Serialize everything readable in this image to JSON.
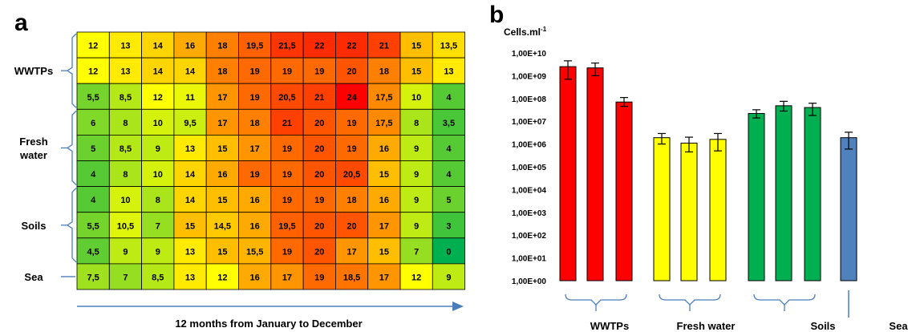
{
  "panel_a": {
    "label": "a",
    "xlabel": "12 months from January to December",
    "groups": [
      {
        "name": "WWTPs",
        "rows": 3
      },
      {
        "name": "Fresh\nwater",
        "rows": 3
      },
      {
        "name": "Soils",
        "rows": 3
      },
      {
        "name": "Sea",
        "rows": 1
      }
    ],
    "colors": {
      "low": "#00b050",
      "mid": "#ffff00",
      "high": "#ff0000",
      "gridline": "#000000",
      "bracket": "#4a7ebb",
      "arrow": "#4a7ebb"
    }
  },
  "panel_b": {
    "label": "b",
    "ylabel": "Cells.ml",
    "ylabel_sup": "-1",
    "yticks": [
      "1,00E+00",
      "1,00E+01",
      "1,00E+02",
      "1,00E+03",
      "1,00E+04",
      "1,00E+05",
      "1,00E+06",
      "1,00E+07",
      "1,00E+08",
      "1,00E+09",
      "1,00E+10"
    ],
    "groups": [
      "WWTPs",
      "Fresh water",
      "Soils",
      "Sea"
    ],
    "colors": {
      "WWTPs": "#ff0000",
      "Fresh water": "#ffff00",
      "Soils": "#00b050",
      "Sea": "#4f81bd",
      "bracket": "#4a7ebb"
    }
  },
  "chart_data": [
    {
      "type": "heatmap",
      "title": "",
      "xlabel": "12 months from January to December",
      "ylabel": "",
      "row_groups": [
        "WWTPs",
        "Fresh water",
        "Soils",
        "Sea"
      ],
      "rows": [
        [
          "12",
          "13",
          "14",
          "16",
          "18",
          "19,5",
          "21,5",
          "22",
          "22",
          "21",
          "15",
          "13,5"
        ],
        [
          "12",
          "13",
          "14",
          "14",
          "18",
          "19",
          "19",
          "19",
          "20",
          "18",
          "15",
          "13"
        ],
        [
          "5,5",
          "8,5",
          "12",
          "11",
          "17",
          "19",
          "20,5",
          "21",
          "24",
          "17,5",
          "10",
          "4"
        ],
        [
          "6",
          "8",
          "10",
          "9,5",
          "17",
          "18",
          "21",
          "20",
          "19",
          "17,5",
          "8",
          "3,5"
        ],
        [
          "5",
          "8,5",
          "9",
          "13",
          "15",
          "17",
          "19",
          "20",
          "19",
          "16",
          "9",
          "4"
        ],
        [
          "4",
          "8",
          "10",
          "14",
          "16",
          "19",
          "19",
          "20",
          "20,5",
          "15",
          "9",
          "4"
        ],
        [
          "4",
          "10",
          "8",
          "14",
          "15",
          "16",
          "19",
          "19",
          "18",
          "16",
          "9",
          "5"
        ],
        [
          "5,5",
          "10,5",
          "7",
          "15",
          "14,5",
          "16",
          "19,5",
          "20",
          "20",
          "17",
          "9",
          "3"
        ],
        [
          "4,5",
          "9",
          "9",
          "13",
          "15",
          "15,5",
          "19",
          "20",
          "17",
          "15",
          "7",
          "0"
        ],
        [
          "7,5",
          "7",
          "8,5",
          "13",
          "12",
          "16",
          "17",
          "19",
          "18,5",
          "17",
          "12",
          "9"
        ]
      ]
    },
    {
      "type": "bar",
      "title": "",
      "ylabel": "Cells.ml-1",
      "yscale": "log",
      "ylim": [
        1,
        10000000000
      ],
      "categories": [
        "WWTPs",
        "Fresh water",
        "Soils",
        "Sea"
      ],
      "bars": [
        {
          "group": "WWTPs",
          "value": 2500000000,
          "err_low": 700000000,
          "err_high": 4500000000
        },
        {
          "group": "WWTPs",
          "value": 2200000000,
          "err_low": 1000000000,
          "err_high": 3600000000
        },
        {
          "group": "WWTPs",
          "value": 70000000,
          "err_low": 45000000,
          "err_high": 110000000
        },
        {
          "group": "Fresh water",
          "value": 1900000,
          "err_low": 1000000,
          "err_high": 2900000
        },
        {
          "group": "Fresh water",
          "value": 1100000,
          "err_low": 450000,
          "err_high": 2000000
        },
        {
          "group": "Fresh water",
          "value": 1600000,
          "err_low": 500000,
          "err_high": 2900000
        },
        {
          "group": "Soils",
          "value": 22000000,
          "err_low": 14000000,
          "err_high": 32000000
        },
        {
          "group": "Soils",
          "value": 48000000,
          "err_low": 28000000,
          "err_high": 75000000
        },
        {
          "group": "Soils",
          "value": 40000000,
          "err_low": 18000000,
          "err_high": 62000000
        },
        {
          "group": "Sea",
          "value": 1900000,
          "err_low": 600000,
          "err_high": 3300000
        }
      ]
    }
  ]
}
